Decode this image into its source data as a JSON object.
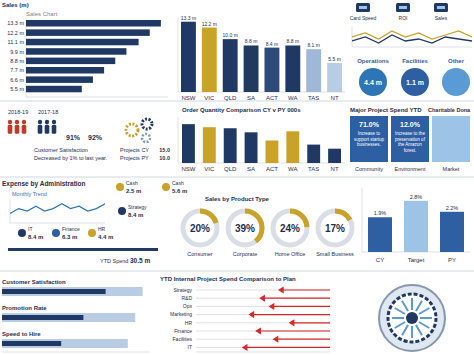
{
  "chart_data": [
    {
      "type": "bar",
      "orientation": "horizontal",
      "title": "Sales Chart",
      "ylabel": "Sales (m)",
      "categories": [
        null,
        null,
        null,
        null,
        null,
        null,
        null,
        null
      ],
      "values": [
        13.3,
        12.2,
        11.1,
        9.9,
        8.8,
        7.7,
        6.6,
        5.5
      ],
      "value_labels": [
        "13.3 m",
        "12.2 m",
        "11.1 m",
        "9.9 m",
        "8.8 m",
        "7.7 m",
        "6.6 m",
        "5.5 m"
      ],
      "data_labels": true,
      "color": "#1f3864",
      "xlim": [
        0,
        14
      ],
      "tick_labels": false
    },
    {
      "type": "bar",
      "categories": [
        "NSW",
        "VIC",
        "QLD",
        "SA",
        "ACT",
        "WA",
        "TAS",
        "NT"
      ],
      "values": [
        13.3,
        12.2,
        10.0,
        8.8,
        8.4,
        8.8,
        8.1,
        5.5
      ],
      "value_labels": [
        "13.3 m",
        "12.2 m",
        "10.0 m",
        "8.8 m",
        "8.4 m",
        "8.8 m",
        "8.1 m",
        "5.5 m"
      ],
      "data_labels": true,
      "colors": [
        "#1f3864",
        "#c9a227",
        "#1f3864",
        "#223a5e",
        "#2e4a78",
        "#1f3864",
        "#9fb8d8",
        "#b8cce4"
      ],
      "ylim": [
        0,
        14
      ],
      "tick_labels": "x"
    },
    {
      "type": "line",
      "series": [
        {
          "color": "#c9a227",
          "values": [
            5,
            7,
            4,
            8,
            5,
            7,
            4,
            6,
            8,
            5
          ]
        },
        {
          "color": "#1f3864",
          "values": [
            3,
            5,
            2,
            6,
            3,
            4,
            2,
            5,
            4,
            3
          ]
        }
      ],
      "ylim": [
        0,
        10
      ],
      "tick_labels": false
    },
    {
      "type": "bar",
      "title": "Order Quantity Comparison CY v PY 000s",
      "categories": [
        "NSW",
        "VIC",
        "QLD",
        "SA",
        "ACT",
        "WA",
        "TAS",
        "NT"
      ],
      "values": [
        38,
        35,
        34,
        30,
        22,
        31,
        18,
        14
      ],
      "colors": [
        "#1f3864",
        "#c9a227",
        "#1f3864",
        "#1f3864",
        "#c9a227",
        "#c9a227",
        "#1f3864",
        "#1f3864"
      ],
      "ylim": [
        0,
        45
      ],
      "tick_labels": "x"
    },
    {
      "type": "line",
      "title": "Monthly Trend",
      "values": [
        4,
        6,
        5,
        7,
        5,
        6,
        8,
        6,
        7,
        5,
        6,
        8
      ],
      "color": "#2e75b6",
      "ylim": [
        0,
        10
      ],
      "tick_labels": false
    },
    {
      "type": "donut",
      "title": "Sales by Product Type",
      "categories": [
        "Consumer",
        "Corporate",
        "Home Office",
        "Small Business"
      ],
      "values": [
        20,
        39,
        24,
        17
      ],
      "value_labels": [
        "20%",
        "39%",
        "24%",
        "17%"
      ],
      "data_labels": true,
      "color": "#c9a227"
    },
    {
      "type": "bar",
      "categories": [
        "CY",
        "Target",
        "PY"
      ],
      "values": [
        1.9,
        2.8,
        2.2
      ],
      "value_labels": [
        "1.9%",
        "2.8%",
        "2.2%"
      ],
      "data_labels": true,
      "colors": [
        "#2e5fa3",
        "#9dc3e6",
        "#2e5fa3"
      ],
      "ylim": [
        0,
        3.5
      ],
      "tick_labels": "x"
    },
    {
      "type": "bar",
      "orientation": "horizontal",
      "categories": [
        "Customer Satisfaction",
        "Promotion Rate",
        "Speed to Hire"
      ],
      "series": [
        {
          "color": "#b8cce4",
          "values": [
            95,
            90,
            85
          ]
        },
        {
          "color": "#1f3864",
          "values": [
            70,
            55,
            40
          ]
        }
      ],
      "xlim": [
        0,
        100
      ],
      "tick_labels": "y"
    },
    {
      "type": "arrow",
      "orientation": "horizontal",
      "title": "YTD Internal Project Spend Comparison to Plan",
      "categories": [
        "Strategy",
        "R&D",
        "Ops",
        "Marketing",
        "HR",
        "Finance",
        "Facilities",
        "IT"
      ],
      "values": [
        62,
        48,
        55,
        40,
        70,
        45,
        58,
        35
      ],
      "color": "#d9262b",
      "xlim": [
        0,
        100
      ],
      "tick_labels": "y"
    }
  ],
  "top_right": {
    "icons": [
      "Card Speed",
      "ROI",
      "Sales"
    ],
    "circles": [
      {
        "label": "Operations",
        "value": "4.4 m"
      },
      {
        "label": "Facilities",
        "value": "1.1 m"
      },
      {
        "label": "Other"
      }
    ]
  },
  "satisfaction": {
    "years": [
      "2018-19",
      "2017-18"
    ],
    "rates": [
      "91%",
      "92%"
    ],
    "note": [
      "Customer Satisfaction",
      "Decreased by 1% to last year."
    ],
    "projects": [
      {
        "label": "Projects CY",
        "value": "15.0"
      },
      {
        "label": "Projects PY",
        "value": "10.0"
      }
    ]
  },
  "major_project": {
    "title": "Major Project Spend YTD",
    "side_title": "Charitable Dona",
    "items": [
      {
        "value": "71.0%",
        "text": "Increase to support startup businesses."
      },
      {
        "value": "12.0%",
        "text": "Increase to the preservation of the Amazon forest."
      }
    ],
    "categories": [
      "Community",
      "Environment",
      "Market"
    ]
  },
  "expense": {
    "title": "Expense by Administration",
    "items": [
      {
        "label": "IT",
        "value": "8.4 m"
      },
      {
        "label": "Finance",
        "value": "6.3 m"
      },
      {
        "label": "HR",
        "value": "4.4 m"
      },
      {
        "label": "Strategy",
        "value": "8.4 m"
      },
      {
        "label": "Cash",
        "value": "2.5 m"
      },
      {
        "label": "Cash",
        "value": "5.6 m"
      }
    ],
    "ytd": {
      "label": "YTD Spend",
      "value": "30.5 m"
    }
  }
}
